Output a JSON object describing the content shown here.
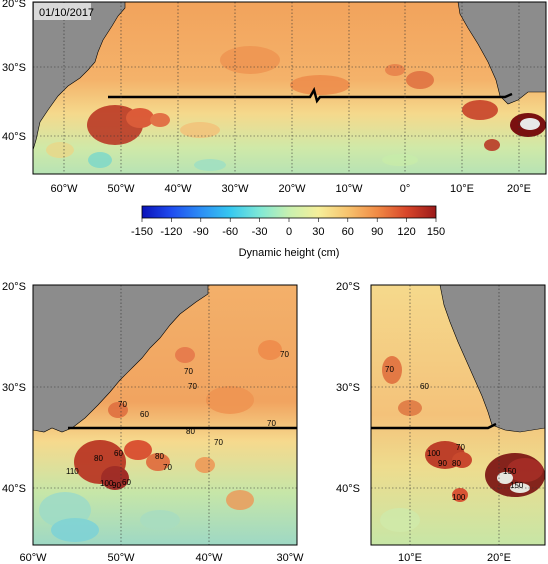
{
  "date_label": "01/10/2017",
  "colorbar": {
    "title": "Dynamic height (cm)",
    "ticks": [
      "-150",
      "-120",
      "-90",
      "-60",
      "-30",
      "0",
      "30",
      "60",
      "90",
      "120",
      "150"
    ],
    "colors": [
      "#0a12b8",
      "#1f4cf0",
      "#2c8ef5",
      "#36c8f0",
      "#7fe8d6",
      "#c8f0b0",
      "#f5ef9a",
      "#f7c36e",
      "#f08a45",
      "#d8462a",
      "#9b1a1a"
    ]
  },
  "top_map": {
    "lat_ticks": [
      "20°S",
      "30°S",
      "40°S"
    ],
    "lon_ticks": [
      "60°W",
      "50°W",
      "40°W",
      "30°W",
      "20°W",
      "10°W",
      "0°",
      "10°E",
      "20°E"
    ]
  },
  "left_map": {
    "lat_ticks": [
      "20°S",
      "30°S",
      "40°S"
    ],
    "lon_ticks": [
      "60°W",
      "50°W",
      "40°W",
      "30°W"
    ],
    "contour_labels": [
      "70",
      "70",
      "70",
      "70",
      "60",
      "70",
      "80",
      "70",
      "60",
      "80",
      "70",
      "100",
      "110",
      "90",
      "60",
      "80"
    ]
  },
  "right_map": {
    "lat_ticks": [
      "20°S",
      "30°S",
      "40°S"
    ],
    "lon_ticks": [
      "10°E",
      "20°E"
    ],
    "contour_labels": [
      "70",
      "60",
      "100",
      "90",
      "70",
      "80",
      "150",
      "150",
      "100"
    ]
  }
}
